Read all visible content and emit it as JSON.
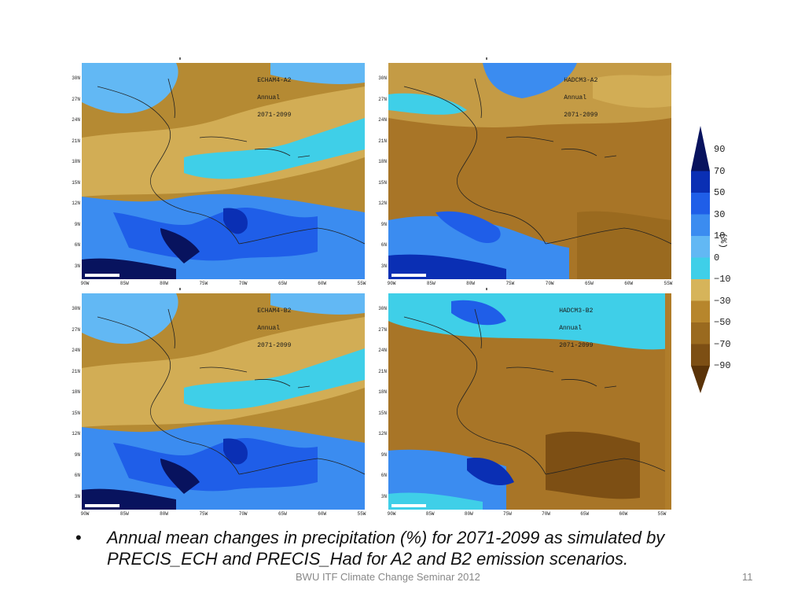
{
  "panels": [
    {
      "title": "ECHAM4-A2",
      "period_label": "Annual",
      "years": "2071-2099",
      "pattern": "echam"
    },
    {
      "title": "HADCM3-A2",
      "period_label": "Annual",
      "years": "2071-2099",
      "pattern": "hadcm"
    },
    {
      "title": "ECHAM4-B2",
      "period_label": "Annual",
      "years": "2071-2099",
      "pattern": "echam"
    },
    {
      "title": "HADCM3-B2",
      "period_label": "Annual",
      "years": "2071-2099",
      "pattern": "hadcm_b2"
    }
  ],
  "lat_ticks": [
    "30N",
    "27N",
    "24N",
    "21N",
    "18N",
    "15N",
    "12N",
    "9N",
    "6N",
    "3N"
  ],
  "lon_ticks": [
    "90W",
    "85W",
    "80W",
    "75W",
    "70W",
    "65W",
    "60W",
    "55W"
  ],
  "lon_ticks_right": [
    "90W",
    "85W",
    "80W",
    "75W",
    "70W",
    "65W",
    "60W",
    "55W"
  ],
  "legend": {
    "unit": "(%)",
    "labels": [
      "90",
      "70",
      "50",
      "30",
      "10",
      "0",
      "−10",
      "−30",
      "−50",
      "−70",
      "−90"
    ],
    "colors": [
      "#08135e",
      "#0a2fb4",
      "#1f5ee8",
      "#3b8cf0",
      "#62b8f4",
      "#3fcfe8",
      "#d6b45a",
      "#b7862c",
      "#9a6a1f",
      "#7d4f14",
      "#5a3308"
    ]
  },
  "caption": {
    "bullet": "•",
    "text": "Annual mean changes in precipitation (%) for 2071-2099 as simulated by PRECIS_ECH and PRECIS_Had for A2 and B2 emission scenarios."
  },
  "footer": "BWU ITF Climate Change Seminar 2012",
  "page_number": "11"
}
